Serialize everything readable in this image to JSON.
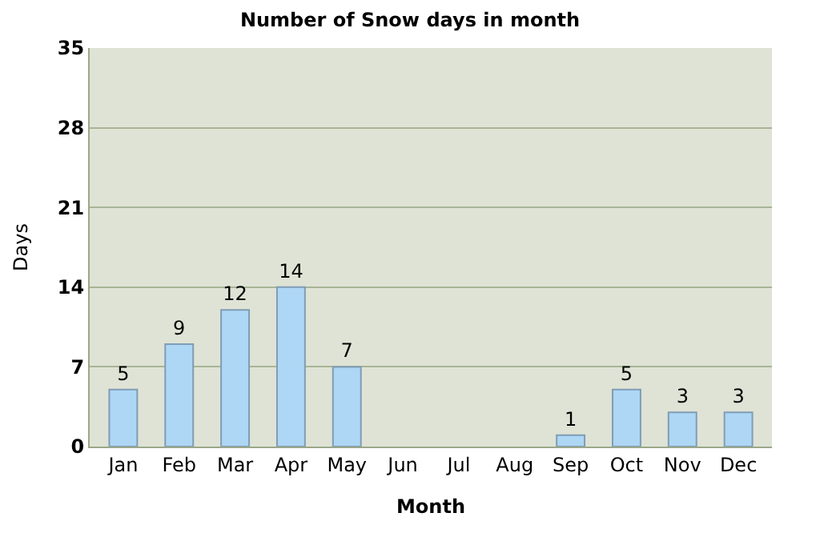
{
  "chart_data": {
    "type": "bar",
    "title": "Number of Snow days in month",
    "xlabel": "Month",
    "ylabel": "Days",
    "categories": [
      "Jan",
      "Feb",
      "Mar",
      "Apr",
      "May",
      "Jun",
      "Jul",
      "Aug",
      "Sep",
      "Oct",
      "Nov",
      "Dec"
    ],
    "values": [
      5,
      9,
      12,
      14,
      7,
      null,
      null,
      null,
      1,
      5,
      3,
      3
    ],
    "color": "#aed6f5",
    "ylim": [
      0,
      35
    ],
    "yticks": [
      0,
      7,
      14,
      21,
      28,
      35
    ],
    "grid": "y",
    "data_labels": true
  }
}
